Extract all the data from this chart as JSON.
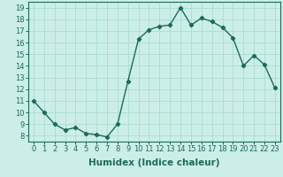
{
  "x": [
    0,
    1,
    2,
    3,
    4,
    5,
    6,
    7,
    8,
    9,
    10,
    11,
    12,
    13,
    14,
    15,
    16,
    17,
    18,
    19,
    20,
    21,
    22,
    23
  ],
  "y": [
    11,
    10,
    9,
    8.5,
    8.7,
    8.2,
    8.1,
    7.9,
    9,
    12.7,
    16.3,
    17.1,
    17.4,
    17.5,
    19.0,
    17.5,
    18.1,
    17.8,
    17.3,
    16.4,
    14.0,
    14.9,
    14.1,
    12.1
  ],
  "line_color": "#1a6b5a",
  "marker": "D",
  "marker_size": 2.2,
  "bg_color": "#cceee8",
  "grid_color": "#aaddcc",
  "xlabel": "Humidex (Indice chaleur)",
  "xlabel_fontsize": 7.5,
  "ylim": [
    7.5,
    19.5
  ],
  "yticks": [
    8,
    9,
    10,
    11,
    12,
    13,
    14,
    15,
    16,
    17,
    18,
    19
  ],
  "xlim": [
    -0.5,
    23.5
  ],
  "xticks": [
    0,
    1,
    2,
    3,
    4,
    5,
    6,
    7,
    8,
    9,
    10,
    11,
    12,
    13,
    14,
    15,
    16,
    17,
    18,
    19,
    20,
    21,
    22,
    23
  ],
  "tick_fontsize": 6.0,
  "linewidth": 1.0
}
